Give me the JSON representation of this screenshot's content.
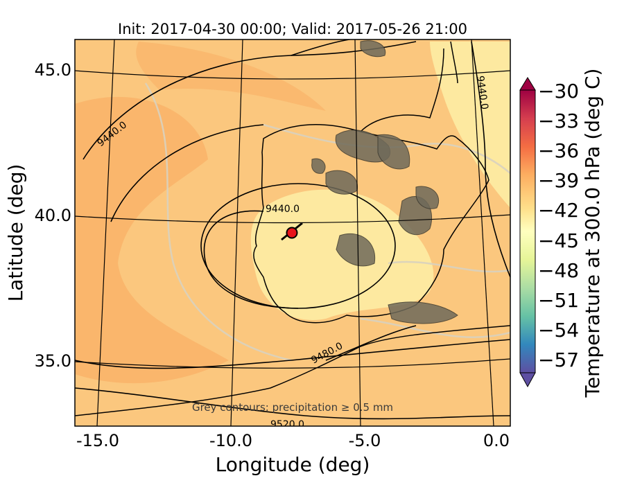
{
  "map": {
    "title": "Init: 2017-04-30 00:00; Valid: 2017-05-26 21:00",
    "xlabel": "Longitude (deg)",
    "ylabel": "Latitude (deg)",
    "x_ticks": [
      "-15.0",
      "-10.0",
      "-5.0",
      "0.0"
    ],
    "y_ticks": [
      "45.0",
      "40.0",
      "35.0"
    ],
    "annotation": "Grey contours: precipitation ≥ 0.5 mm",
    "contour_labels": [
      "9440.0",
      "9440.0",
      "9440.0",
      "9480.0",
      "9520.0"
    ],
    "marker": {
      "lon": -7.7,
      "lat": 39.4,
      "color": "#e8141c"
    }
  },
  "colorbar": {
    "label": "Temperature at 300.0 hPa (deg C)",
    "ticks": [
      "−30",
      "−33",
      "−36",
      "−39",
      "−42",
      "−45",
      "−48",
      "−51",
      "−54",
      "−57"
    ],
    "colormap_stops": [
      "#9e0142",
      "#d53e4f",
      "#f46d43",
      "#fdae61",
      "#fee08b",
      "#ffffbf",
      "#e6f598",
      "#abdda4",
      "#66c2a5",
      "#3288bd",
      "#5e4fa2"
    ]
  }
}
